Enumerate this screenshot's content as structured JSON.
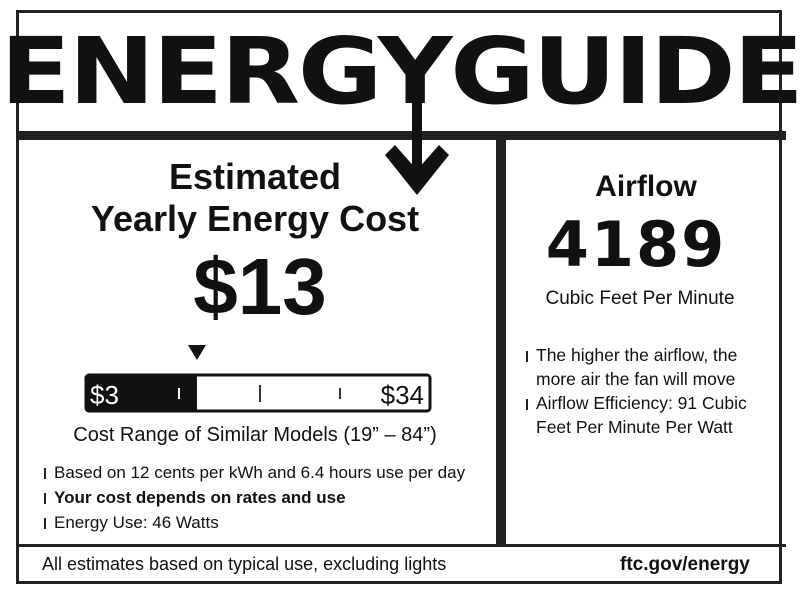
{
  "title": "ENERGYGUIDE",
  "cost": {
    "heading_line1": "Estimated",
    "heading_line2": "Yearly Energy Cost",
    "value": "$13"
  },
  "scale": {
    "min_label": "$3",
    "max_label": "$34",
    "min": 3,
    "max": 34,
    "value": 13,
    "caption": "Cost Range of Similar Models (19” – 84”)"
  },
  "left_notes": [
    {
      "text": "Based on 12 cents per kWh and 6.4 hours use per day",
      "bold": false
    },
    {
      "text": "Your cost depends on rates and use",
      "bold": true
    },
    {
      "text": "Energy Use: 46 Watts",
      "bold": false
    }
  ],
  "airflow": {
    "heading": "Airflow",
    "value": "4189",
    "unit": "Cubic Feet Per Minute",
    "notes": [
      "The higher the airflow, the more air the fan will move",
      "Airflow Efficiency: 91 Cubic Feet Per Minute Per Watt"
    ]
  },
  "footer": {
    "left": "All estimates based on typical use, excluding lights",
    "right": "ftc.gov/energy"
  }
}
